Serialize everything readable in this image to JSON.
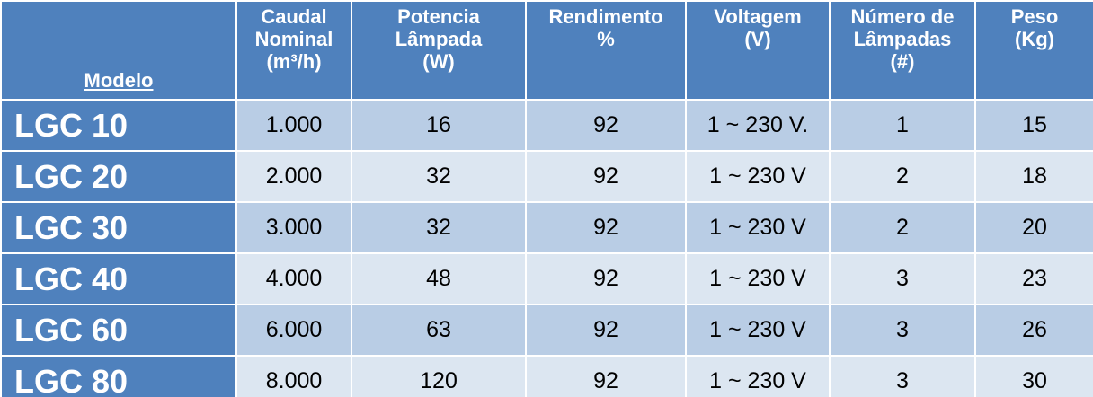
{
  "table": {
    "header": [
      [
        "Modelo"
      ],
      [
        "Caudal",
        "Nominal",
        "(m³/h)"
      ],
      [
        "Potencia",
        "Lâmpada",
        "(W)"
      ],
      [
        "Rendimento",
        "%"
      ],
      [
        "Voltagem",
        "(V)"
      ],
      [
        "Número de",
        "Lâmpadas",
        "(#)"
      ],
      [
        "Peso",
        "(Kg)"
      ]
    ],
    "rows": [
      [
        "LGC 10",
        "1.000",
        "16",
        "92",
        "1 ~ 230 V.",
        "1",
        "15"
      ],
      [
        "LGC 20",
        "2.000",
        "32",
        "92",
        "1 ~ 230 V",
        "2",
        "18"
      ],
      [
        "LGC 30",
        "3.000",
        "32",
        "92",
        "1 ~ 230 V",
        "2",
        "20"
      ],
      [
        "LGC 40",
        "4.000",
        "48",
        "92",
        "1 ~ 230 V",
        "3",
        "23"
      ],
      [
        "LGC 60",
        "6.000",
        "63",
        "92",
        "1 ~ 230 V",
        "3",
        "26"
      ],
      [
        "LGC 80",
        "8.000",
        "120",
        "92",
        "1 ~ 230 V",
        "3",
        "30"
      ]
    ]
  }
}
